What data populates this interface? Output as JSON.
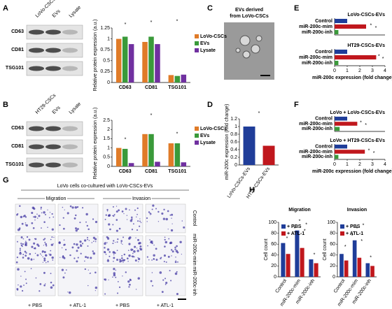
{
  "panels": [
    "A",
    "B",
    "C",
    "D",
    "E",
    "F",
    "G",
    "H"
  ],
  "blot_A": {
    "lanes": [
      "LoVo-CSCs",
      "EVs",
      "Lysate"
    ],
    "rows": [
      "CD63",
      "CD81",
      "TSG101"
    ]
  },
  "blot_B": {
    "lanes": [
      "HT29-CSCs",
      "EVs",
      "Lysate"
    ],
    "rows": [
      "CD63",
      "CD81",
      "TSG101"
    ]
  },
  "panel_C": {
    "title": [
      "EVs derived",
      "from LoVo-CSCs"
    ]
  },
  "panel_G": {
    "title": "LoVo cells co-cultured with LoVo-CSCs-EVs",
    "groups": [
      "Migration",
      "Invasion"
    ],
    "rows": [
      "Control",
      "miR-200c-mim",
      "miR-200c-inh"
    ],
    "columns": [
      "+ PBS",
      "+ ATL-1",
      "+ PBS",
      "+ ATL-1"
    ]
  },
  "chart_data": [
    {
      "type": "bar",
      "y_label": "Relative protein expression (a.u.)",
      "categories": [
        "CD63",
        "CD81",
        "TSG101"
      ],
      "series": [
        {
          "name": "LoVo-CSCs",
          "color": "#e07b28",
          "values": [
            1.0,
            0.93,
            0.17
          ]
        },
        {
          "name": "EVs",
          "color": "#3a9a3a",
          "values": [
            1.05,
            1.05,
            0.15
          ]
        },
        {
          "name": "Lysate",
          "color": "#7030a0",
          "values": [
            0.88,
            0.88,
            0.18
          ]
        }
      ],
      "ylim": [
        0,
        1.25
      ],
      "yticks": [
        0,
        0.25,
        0.5,
        0.75,
        1,
        1.25
      ],
      "annotations": [
        "*",
        "*",
        "*"
      ]
    },
    {
      "type": "bar",
      "y_label": "Relative protein expression (a.u.)",
      "categories": [
        "CD63",
        "CD81",
        "TSG101"
      ],
      "series": [
        {
          "name": "LoVo-CSCs",
          "color": "#e07b28",
          "values": [
            1.0,
            1.75,
            1.25
          ]
        },
        {
          "name": "EVs",
          "color": "#3a9a3a",
          "values": [
            0.95,
            1.75,
            1.25
          ]
        },
        {
          "name": "Lysate",
          "color": "#7030a0",
          "values": [
            0.18,
            0.25,
            0.22
          ]
        }
      ],
      "ylim": [
        0,
        2.5
      ],
      "yticks": [
        0,
        0.5,
        1,
        1.5,
        2,
        2.5
      ],
      "annotations": [
        "*",
        "*",
        "*"
      ]
    },
    {
      "type": "bar",
      "y_label": "miR-200c expression (fold change)",
      "categories": [
        "LoVo-CSCs-EVs",
        "HT29-CSCs-EVs"
      ],
      "values": [
        1.0,
        0.5
      ],
      "colors": [
        "#1f3d99",
        "#c0171d"
      ],
      "ylim": [
        0,
        1.2
      ],
      "yticks": [
        0,
        0.2,
        0.4,
        0.6,
        0.8,
        1,
        1.2
      ],
      "annotations": [
        "*"
      ]
    },
    {
      "type": "hbar",
      "subtitle": "LoVo-CSCs-EVs",
      "categories": [
        "Control",
        "miR-200c-mim",
        "miR-200c-inh"
      ],
      "values": [
        1,
        2.5,
        0.3
      ],
      "colors": [
        "#1f3d99",
        "#c0171d",
        "#3a9a3a"
      ],
      "xlim": [
        0,
        4
      ],
      "annotations": [
        "*",
        "*"
      ]
    },
    {
      "type": "hbar",
      "subtitle": "HT29-CSCs-EVs",
      "categories": [
        "Control",
        "miR-200c-mim",
        "miR-200c-inh"
      ],
      "values": [
        1,
        3.3,
        0.3
      ],
      "colors": [
        "#1f3d99",
        "#c0171d",
        "#3a9a3a"
      ],
      "xlim": [
        0,
        4
      ],
      "xticks": [
        0,
        1,
        2,
        3,
        4
      ],
      "x_label": "miR-200c expression (fold change)",
      "annotations": [
        "*",
        "*"
      ]
    },
    {
      "type": "hbar",
      "subtitle": "LoVo + LoVo-CSCs-EVs",
      "categories": [
        "Control",
        "miR-200c-mim",
        "miR-200c-inh"
      ],
      "values": [
        1,
        1.8,
        0.4
      ],
      "colors": [
        "#1f3d99",
        "#c0171d",
        "#3a9a3a"
      ],
      "xlim": [
        0,
        4
      ],
      "annotations": [
        "*",
        "*"
      ]
    },
    {
      "type": "hbar",
      "subtitle": "LoVo + HT29-CSCs-EVs",
      "categories": [
        "Control",
        "miR-200c-mim",
        "miR-200c-inh"
      ],
      "values": [
        1,
        2.4,
        0.3
      ],
      "colors": [
        "#1f3d99",
        "#c0171d",
        "#3a9a3a"
      ],
      "xlim": [
        0,
        4
      ],
      "xticks": [
        0,
        1,
        2,
        3,
        4
      ],
      "x_label": "miR-200c expression (fold change)",
      "annotations": [
        "*",
        "*"
      ]
    },
    {
      "type": "bar",
      "title": "Migration",
      "y_label": "Cell count",
      "categories": [
        "Control",
        "miR-200c-mim",
        "miR-200c-inh"
      ],
      "series": [
        {
          "name": "+ PBS",
          "color": "#1f3d99",
          "values": [
            62,
            85,
            32
          ]
        },
        {
          "name": "+ ATL-1",
          "color": "#c0171d",
          "values": [
            42,
            53,
            25
          ]
        }
      ],
      "ylim": [
        0,
        100
      ],
      "yticks": [
        0,
        20,
        40,
        60,
        80,
        100
      ],
      "annotations": [
        "*",
        "*",
        "*",
        "*",
        "*",
        "*"
      ]
    },
    {
      "type": "bar",
      "title": "Invasion",
      "y_label": "Cell count",
      "categories": [
        "Control",
        "miR-200c-mim",
        "miR-200c-inh"
      ],
      "series": [
        {
          "name": "+ PBS",
          "color": "#1f3d99",
          "values": [
            42,
            67,
            25
          ]
        },
        {
          "name": "+ ATL-1",
          "color": "#c0171d",
          "values": [
            30,
            35,
            20
          ]
        }
      ],
      "ylim": [
        0,
        100
      ],
      "yticks": [
        0,
        20,
        40,
        60,
        80,
        100
      ],
      "annotations": [
        "*",
        "*",
        "*",
        "*",
        "*",
        "*"
      ]
    }
  ]
}
